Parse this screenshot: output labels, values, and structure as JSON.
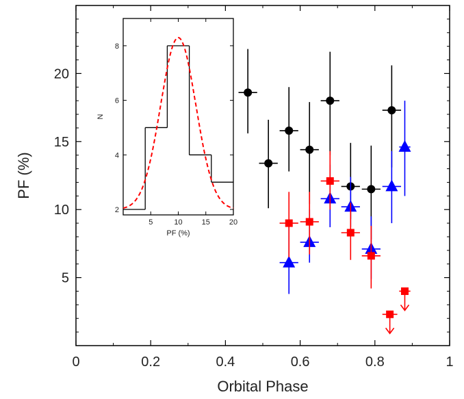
{
  "chart_data": [
    {
      "type": "scatter",
      "xlabel": "Orbital Phase",
      "ylabel": "PF (%)",
      "xlim": [
        0,
        1
      ],
      "ylim": [
        0,
        25
      ],
      "x_ticks": [
        "0",
        "0.2",
        "0.4",
        "0.6",
        "0.8",
        "1"
      ],
      "y_ticks": [
        "5",
        "10",
        "15",
        "20"
      ],
      "x_tick_values": [
        0,
        0.2,
        0.4,
        0.6,
        0.8,
        1.0
      ],
      "y_tick_values": [
        5,
        10,
        15,
        20
      ],
      "colors": {
        "black": "#000000",
        "blue": "#0000ff",
        "red": "#ff0000"
      },
      "series": [
        {
          "marker": "circle",
          "color": "#000000",
          "points": [
            {
              "x": 0.46,
              "y": 18.6,
              "xerr": 0.025,
              "yerr_lo": 3.0,
              "yerr_hi": 3.2
            },
            {
              "x": 0.515,
              "y": 13.4,
              "xerr": 0.025,
              "yerr_lo": 3.3,
              "yerr_hi": 3.2
            },
            {
              "x": 0.57,
              "y": 15.8,
              "xerr": 0.025,
              "yerr_lo": 3.0,
              "yerr_hi": 3.2
            },
            {
              "x": 0.625,
              "y": 14.4,
              "xerr": 0.025,
              "yerr_lo": 4.0,
              "yerr_hi": 3.5
            },
            {
              "x": 0.68,
              "y": 18.0,
              "xerr": 0.025,
              "yerr_lo": 4.0,
              "yerr_hi": 3.6
            },
            {
              "x": 0.735,
              "y": 11.7,
              "xerr": 0.025,
              "yerr_lo": 2.4,
              "yerr_hi": 3.2
            },
            {
              "x": 0.79,
              "y": 11.5,
              "xerr": 0.025,
              "yerr_lo": 3.7,
              "yerr_hi": 3.2
            },
            {
              "x": 0.845,
              "y": 17.3,
              "xerr": 0.025,
              "yerr_lo": 4.2,
              "yerr_hi": 3.3
            }
          ]
        },
        {
          "marker": "triangle",
          "color": "#0000ff",
          "points": [
            {
              "x": 0.57,
              "y": 6.1,
              "xerr": 0.025,
              "yerr_lo": 2.3,
              "yerr_hi": 2.8
            },
            {
              "x": 0.625,
              "y": 7.6,
              "xerr": 0.025,
              "yerr_lo": 1.5,
              "yerr_hi": 2.4
            },
            {
              "x": 0.68,
              "y": 10.8,
              "xerr": 0.025,
              "yerr_lo": 2.1,
              "yerr_hi": 2.5
            },
            {
              "x": 0.735,
              "y": 10.2,
              "xerr": 0.025,
              "yerr_lo": 1.5,
              "yerr_hi": 2.2
            },
            {
              "x": 0.79,
              "y": 7.1,
              "xerr": 0.025,
              "yerr_lo": 2.2,
              "yerr_hi": 2.4
            },
            {
              "x": 0.845,
              "y": 11.7,
              "xerr": 0.025,
              "yerr_lo": 2.7,
              "yerr_hi": 2.6
            },
            {
              "x": 0.88,
              "y": 14.6,
              "xerr": 0.015,
              "yerr_lo": 3.6,
              "yerr_hi": 3.4
            }
          ]
        },
        {
          "marker": "square",
          "color": "#ff0000",
          "points": [
            {
              "x": 0.57,
              "y": 9.0,
              "xerr": 0.025,
              "yerr_lo": 2.5,
              "yerr_hi": 2.3
            },
            {
              "x": 0.625,
              "y": 9.1,
              "xerr": 0.025,
              "yerr_lo": 2.4,
              "yerr_hi": 2.2
            },
            {
              "x": 0.68,
              "y": 12.1,
              "xerr": 0.025,
              "yerr_lo": 2.1,
              "yerr_hi": 2.2
            },
            {
              "x": 0.735,
              "y": 8.3,
              "xerr": 0.025,
              "yerr_lo": 2.0,
              "yerr_hi": 2.2
            },
            {
              "x": 0.79,
              "y": 6.6,
              "xerr": 0.025,
              "yerr_lo": 2.4,
              "yerr_hi": 2.2
            },
            {
              "x": 0.84,
              "y": 2.3,
              "xerr": 0.02,
              "upper_limit": true
            },
            {
              "x": 0.88,
              "y": 4.0,
              "xerr": 0.015,
              "upper_limit": true
            }
          ]
        }
      ]
    },
    {
      "type": "bar",
      "subtype": "histogram",
      "xlabel": "PF (%)",
      "ylabel": "N",
      "xlim": [
        0,
        20
      ],
      "ylim": [
        1.8,
        9.0
      ],
      "x_ticks": [
        "5",
        "10",
        "15",
        "20"
      ],
      "y_ticks": [
        "2",
        "4",
        "6",
        "8"
      ],
      "x_tick_values": [
        5,
        10,
        15,
        20
      ],
      "y_tick_values": [
        2,
        4,
        6,
        8
      ],
      "bin_edges": [
        0,
        4,
        8,
        12,
        16,
        20
      ],
      "values": [
        2,
        5,
        8,
        4,
        3
      ],
      "fit_curve": {
        "type": "gaussian",
        "style": "dashed",
        "color": "#ff0000",
        "mean": 10.0,
        "sigma": 3.2,
        "amplitude": 6.3,
        "baseline": 2.0
      }
    }
  ]
}
